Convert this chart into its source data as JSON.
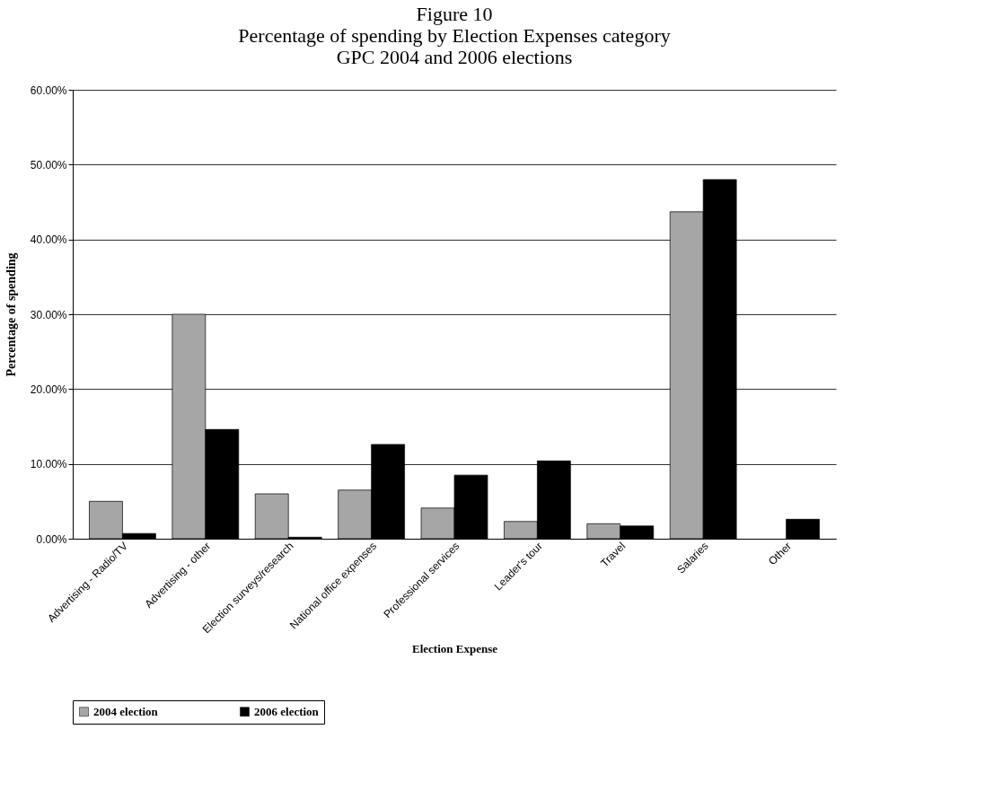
{
  "chart_data": {
    "type": "bar",
    "title": [
      "Figure 10",
      "Percentage of spending by Election Expenses category",
      "GPC 2004 and 2006 elections"
    ],
    "xlabel": "Election Expense",
    "ylabel": "Percentage  of  spending",
    "categories": [
      "Advertising - Radio/TV",
      "Advertising - other",
      "Election surveys/research",
      "National office expenses",
      "Professional services",
      "Leader's tour",
      "Travel",
      "Salaries",
      "Other"
    ],
    "series": [
      {
        "name": "2004 election",
        "color": "#a6a6a6",
        "values": [
          5.0,
          30.0,
          6.0,
          6.5,
          4.1,
          2.3,
          2.0,
          43.7,
          null
        ]
      },
      {
        "name": "2006 election",
        "color": "#000000",
        "values": [
          0.7,
          14.6,
          0.2,
          12.6,
          8.5,
          10.4,
          1.7,
          48.0,
          2.6
        ]
      }
    ],
    "ylim": [
      0,
      60
    ],
    "yticks": [
      {
        "value": 0,
        "label": "0.00%"
      },
      {
        "value": 10,
        "label": "10.00%"
      },
      {
        "value": 20,
        "label": "20.00%"
      },
      {
        "value": 30,
        "label": "30.00%"
      },
      {
        "value": 40,
        "label": "40.00%"
      },
      {
        "value": 50,
        "label": "50.00%"
      },
      {
        "value": 60,
        "label": "60.00%"
      }
    ],
    "grid": "y",
    "legend": "bottom"
  }
}
